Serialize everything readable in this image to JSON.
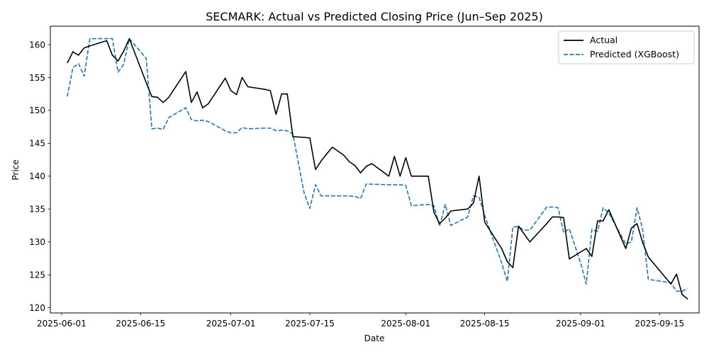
{
  "chart_data": {
    "type": "line",
    "title": "SECMARK: Actual vs Predicted Closing Price (Jun–Sep 2025)",
    "xlabel": "Date",
    "ylabel": "Price",
    "x_ticks": [
      "2025-06-01",
      "2025-06-15",
      "2025-07-01",
      "2025-07-15",
      "2025-08-01",
      "2025-08-15",
      "2025-09-01",
      "2025-09-15"
    ],
    "y_ticks": [
      120,
      125,
      130,
      135,
      140,
      145,
      150,
      155,
      160
    ],
    "xlim": [
      "2025-05-30",
      "2025-09-22"
    ],
    "ylim": [
      119.2,
      162.8
    ],
    "grid": false,
    "legend_position": "top-right",
    "colors": {
      "actual": "#000000",
      "predicted": "#1f77b4"
    },
    "series": [
      {
        "name": "Actual",
        "style": "solid",
        "points": [
          [
            "2025-06-02",
            157.2
          ],
          [
            "2025-06-03",
            158.9
          ],
          [
            "2025-06-04",
            158.4
          ],
          [
            "2025-06-05",
            159.5
          ],
          [
            "2025-06-06",
            159.8
          ],
          [
            "2025-06-09",
            160.6
          ],
          [
            "2025-06-10",
            158.4
          ],
          [
            "2025-06-11",
            157.5
          ],
          [
            "2025-06-12",
            159.0
          ],
          [
            "2025-06-13",
            160.9
          ],
          [
            "2025-06-16",
            154.2
          ],
          [
            "2025-06-17",
            152.1
          ],
          [
            "2025-06-18",
            152.0
          ],
          [
            "2025-06-19",
            151.2
          ],
          [
            "2025-06-20",
            152.0
          ],
          [
            "2025-06-23",
            155.9
          ],
          [
            "2025-06-24",
            151.2
          ],
          [
            "2025-06-25",
            152.8
          ],
          [
            "2025-06-26",
            150.4
          ],
          [
            "2025-06-27",
            151.0
          ],
          [
            "2025-06-30",
            154.9
          ],
          [
            "2025-07-01",
            153.0
          ],
          [
            "2025-07-02",
            152.4
          ],
          [
            "2025-07-03",
            155.0
          ],
          [
            "2025-07-04",
            153.6
          ],
          [
            "2025-07-07",
            153.2
          ],
          [
            "2025-07-08",
            153.0
          ],
          [
            "2025-07-09",
            149.4
          ],
          [
            "2025-07-10",
            152.5
          ],
          [
            "2025-07-11",
            152.5
          ],
          [
            "2025-07-12",
            146.0
          ],
          [
            "2025-07-14",
            145.9
          ],
          [
            "2025-07-15",
            145.8
          ],
          [
            "2025-07-16",
            141.0
          ],
          [
            "2025-07-17",
            142.3
          ],
          [
            "2025-07-18",
            143.4
          ],
          [
            "2025-07-19",
            144.4
          ],
          [
            "2025-07-21",
            143.2
          ],
          [
            "2025-07-22",
            142.2
          ],
          [
            "2025-07-23",
            141.6
          ],
          [
            "2025-07-24",
            140.5
          ],
          [
            "2025-07-25",
            141.5
          ],
          [
            "2025-07-26",
            141.9
          ],
          [
            "2025-07-29",
            140.0
          ],
          [
            "2025-07-30",
            143.0
          ],
          [
            "2025-07-31",
            140.0
          ],
          [
            "2025-08-01",
            142.8
          ],
          [
            "2025-08-02",
            140.0
          ],
          [
            "2025-08-05",
            140.0
          ],
          [
            "2025-08-06",
            134.5
          ],
          [
            "2025-08-07",
            132.8
          ],
          [
            "2025-08-08",
            133.6
          ],
          [
            "2025-08-09",
            134.7
          ],
          [
            "2025-08-12",
            135.0
          ],
          [
            "2025-08-13",
            135.9
          ],
          [
            "2025-08-14",
            140.0
          ],
          [
            "2025-08-15",
            133.0
          ],
          [
            "2025-08-18",
            129.0
          ],
          [
            "2025-08-19",
            127.0
          ],
          [
            "2025-08-20",
            126.1
          ],
          [
            "2025-08-21",
            132.4
          ],
          [
            "2025-08-23",
            130.0
          ],
          [
            "2025-08-26",
            132.8
          ],
          [
            "2025-08-27",
            133.8
          ],
          [
            "2025-08-28",
            133.8
          ],
          [
            "2025-08-29",
            133.7
          ],
          [
            "2025-08-30",
            127.4
          ],
          [
            "2025-09-02",
            129.0
          ],
          [
            "2025-09-03",
            127.8
          ],
          [
            "2025-09-04",
            133.2
          ],
          [
            "2025-09-05",
            133.2
          ],
          [
            "2025-09-06",
            134.9
          ],
          [
            "2025-09-09",
            129.0
          ],
          [
            "2025-09-10",
            132.1
          ],
          [
            "2025-09-11",
            132.8
          ],
          [
            "2025-09-12",
            129.9
          ],
          [
            "2025-09-13",
            127.7
          ],
          [
            "2025-09-17",
            123.6
          ],
          [
            "2025-09-18",
            125.1
          ],
          [
            "2025-09-19",
            122.0
          ],
          [
            "2025-09-20",
            121.3
          ]
        ]
      },
      {
        "name": "Predicted (XGBoost)",
        "style": "dashed",
        "points": [
          [
            "2025-06-02",
            152.1
          ],
          [
            "2025-06-03",
            156.5
          ],
          [
            "2025-06-04",
            157.1
          ],
          [
            "2025-06-05",
            155.2
          ],
          [
            "2025-06-06",
            160.9
          ],
          [
            "2025-06-09",
            160.9
          ],
          [
            "2025-06-10",
            160.9
          ],
          [
            "2025-06-11",
            155.8
          ],
          [
            "2025-06-12",
            157.0
          ],
          [
            "2025-06-13",
            160.9
          ],
          [
            "2025-06-16",
            157.9
          ],
          [
            "2025-06-17",
            147.2
          ],
          [
            "2025-06-18",
            147.3
          ],
          [
            "2025-06-19",
            147.1
          ],
          [
            "2025-06-20",
            148.9
          ],
          [
            "2025-06-23",
            150.4
          ],
          [
            "2025-06-24",
            148.6
          ],
          [
            "2025-06-25",
            148.4
          ],
          [
            "2025-06-26",
            148.5
          ],
          [
            "2025-06-27",
            148.3
          ],
          [
            "2025-06-30",
            146.9
          ],
          [
            "2025-07-01",
            146.6
          ],
          [
            "2025-07-02",
            146.6
          ],
          [
            "2025-07-03",
            147.4
          ],
          [
            "2025-07-04",
            147.2
          ],
          [
            "2025-07-07",
            147.3
          ],
          [
            "2025-07-08",
            147.3
          ],
          [
            "2025-07-09",
            146.9
          ],
          [
            "2025-07-10",
            147.0
          ],
          [
            "2025-07-11",
            146.9
          ],
          [
            "2025-07-12",
            146.4
          ],
          [
            "2025-07-14",
            137.4
          ],
          [
            "2025-07-15",
            135.1
          ],
          [
            "2025-07-16",
            138.7
          ],
          [
            "2025-07-17",
            137.0
          ],
          [
            "2025-07-18",
            137.0
          ],
          [
            "2025-07-22",
            137.0
          ],
          [
            "2025-07-23",
            136.9
          ],
          [
            "2025-07-24",
            136.6
          ],
          [
            "2025-07-25",
            138.8
          ],
          [
            "2025-07-29",
            138.7
          ],
          [
            "2025-07-31",
            138.7
          ],
          [
            "2025-08-01",
            138.6
          ],
          [
            "2025-08-02",
            135.5
          ],
          [
            "2025-08-05",
            135.7
          ],
          [
            "2025-08-06",
            135.5
          ],
          [
            "2025-08-07",
            132.4
          ],
          [
            "2025-08-08",
            135.7
          ],
          [
            "2025-08-09",
            132.5
          ],
          [
            "2025-08-12",
            133.8
          ],
          [
            "2025-08-13",
            137.0
          ],
          [
            "2025-08-14",
            136.8
          ],
          [
            "2025-08-15",
            134.0
          ],
          [
            "2025-08-18",
            126.8
          ],
          [
            "2025-08-19",
            124.0
          ],
          [
            "2025-08-20",
            132.3
          ],
          [
            "2025-08-21",
            132.3
          ],
          [
            "2025-08-22",
            131.8
          ],
          [
            "2025-08-23",
            131.8
          ],
          [
            "2025-08-26",
            135.3
          ],
          [
            "2025-08-27",
            135.3
          ],
          [
            "2025-08-28",
            135.2
          ],
          [
            "2025-08-29",
            131.4
          ],
          [
            "2025-08-30",
            132.0
          ],
          [
            "2025-09-01",
            126.8
          ],
          [
            "2025-09-02",
            123.6
          ],
          [
            "2025-09-03",
            131.9
          ],
          [
            "2025-09-04",
            131.6
          ],
          [
            "2025-09-05",
            135.2
          ],
          [
            "2025-09-06",
            134.4
          ],
          [
            "2025-09-09",
            129.7
          ],
          [
            "2025-09-10",
            130.0
          ],
          [
            "2025-09-11",
            135.2
          ],
          [
            "2025-09-12",
            131.9
          ],
          [
            "2025-09-13",
            124.3
          ],
          [
            "2025-09-17",
            123.8
          ],
          [
            "2025-09-18",
            122.5
          ],
          [
            "2025-09-19",
            122.5
          ],
          [
            "2025-09-20",
            122.9
          ]
        ]
      }
    ]
  }
}
